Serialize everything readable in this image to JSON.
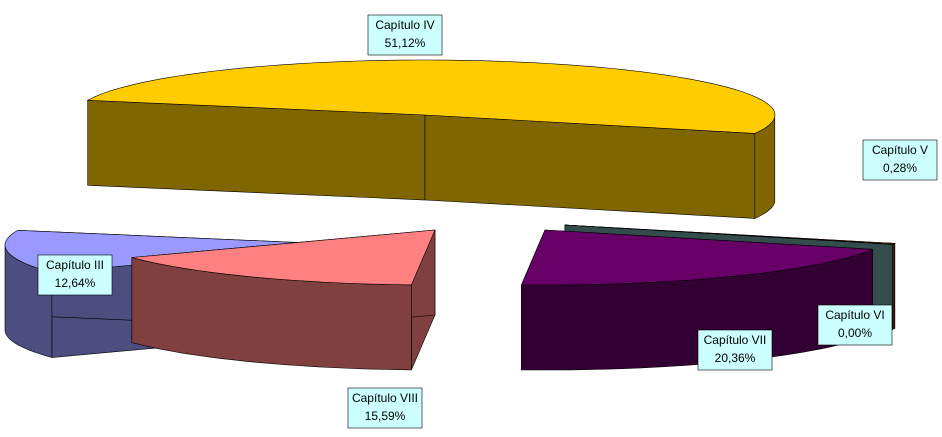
{
  "chart_data": {
    "type": "pie",
    "categories": [
      "Capítulo III",
      "Capítulo IV",
      "Capítulo V",
      "Capítulo VI",
      "Capítulo VII",
      "Capítulo VIII"
    ],
    "values": [
      12.64,
      51.12,
      0.28,
      0.0,
      20.36,
      15.59
    ],
    "value_labels": [
      "12,64%",
      "51,12%",
      "0,28%",
      "0,00%",
      "20,36%",
      "15,59%"
    ],
    "colors": [
      "#9999ff",
      "#ffcc00",
      "#993300",
      "#669999",
      "#660066",
      "#ff8080"
    ]
  }
}
